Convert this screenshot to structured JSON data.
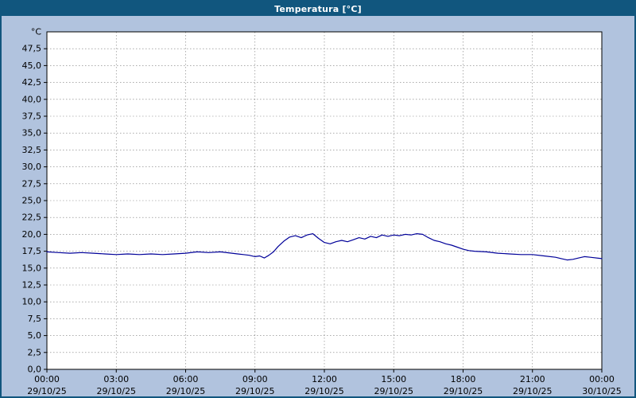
{
  "window": {
    "title": "Temperatura [°C]"
  },
  "chart_data": {
    "type": "line",
    "title": "Temperatura [°C]",
    "ylabel": "°C",
    "xlabel": "",
    "ylim": [
      0,
      50
    ],
    "ytick_step": 2.5,
    "ytick_max": 47.5,
    "ytick_decimal_separator": ",",
    "xlim": [
      0,
      24
    ],
    "grid": true,
    "legend": "none",
    "xticks": [
      {
        "hour": 0,
        "time": "00:00",
        "date": "29/10/25"
      },
      {
        "hour": 3,
        "time": "03:00",
        "date": "29/10/25"
      },
      {
        "hour": 6,
        "time": "06:00",
        "date": "29/10/25"
      },
      {
        "hour": 9,
        "time": "09:00",
        "date": "29/10/25"
      },
      {
        "hour": 12,
        "time": "12:00",
        "date": "29/10/25"
      },
      {
        "hour": 15,
        "time": "15:00",
        "date": "29/10/25"
      },
      {
        "hour": 18,
        "time": "18:00",
        "date": "29/10/25"
      },
      {
        "hour": 21,
        "time": "21:00",
        "date": "29/10/25"
      },
      {
        "hour": 24,
        "time": "00:00",
        "date": "30/10/25"
      }
    ],
    "series": [
      {
        "name": "Temperatura",
        "color": "#000099",
        "x": [
          0,
          0.5,
          1,
          1.5,
          2,
          2.5,
          3,
          3.5,
          4,
          4.5,
          5,
          5.5,
          6,
          6.5,
          7,
          7.5,
          8,
          8.25,
          8.5,
          8.75,
          9,
          9.2,
          9.4,
          9.6,
          9.8,
          10,
          10.25,
          10.5,
          10.75,
          11,
          11.25,
          11.5,
          11.75,
          12,
          12.25,
          12.5,
          12.75,
          13,
          13.25,
          13.5,
          13.75,
          14,
          14.25,
          14.5,
          14.75,
          15,
          15.25,
          15.5,
          15.75,
          16,
          16.25,
          16.5,
          16.75,
          17,
          17.25,
          17.5,
          17.75,
          18,
          18.25,
          18.5,
          19,
          19.5,
          20,
          20.5,
          21,
          21.5,
          22,
          22.25,
          22.5,
          22.75,
          23,
          23.25,
          23.5,
          24
        ],
        "values": [
          17.4,
          17.3,
          17.2,
          17.3,
          17.2,
          17.1,
          17.0,
          17.1,
          17.0,
          17.1,
          17.0,
          17.1,
          17.2,
          17.4,
          17.3,
          17.4,
          17.2,
          17.1,
          17.0,
          16.9,
          16.7,
          16.8,
          16.5,
          16.9,
          17.4,
          18.2,
          19.0,
          19.6,
          19.8,
          19.5,
          19.9,
          20.1,
          19.4,
          18.8,
          18.6,
          18.9,
          19.1,
          18.9,
          19.2,
          19.5,
          19.3,
          19.7,
          19.5,
          19.9,
          19.7,
          19.9,
          19.8,
          20.0,
          19.9,
          20.1,
          20.0,
          19.5,
          19.1,
          18.9,
          18.6,
          18.4,
          18.1,
          17.8,
          17.6,
          17.5,
          17.4,
          17.2,
          17.1,
          17.0,
          17.0,
          16.8,
          16.6,
          16.4,
          16.2,
          16.3,
          16.5,
          16.7,
          16.6,
          16.4
        ]
      }
    ],
    "colors": {
      "plot_bg": "#ffffff",
      "outer_bg": "#b1c3de",
      "titlebar_bg": "#11567e",
      "titlebar_fg": "#ffffff",
      "grid": "#7a7a7a",
      "frame": "#000000",
      "line": "#000099"
    }
  }
}
